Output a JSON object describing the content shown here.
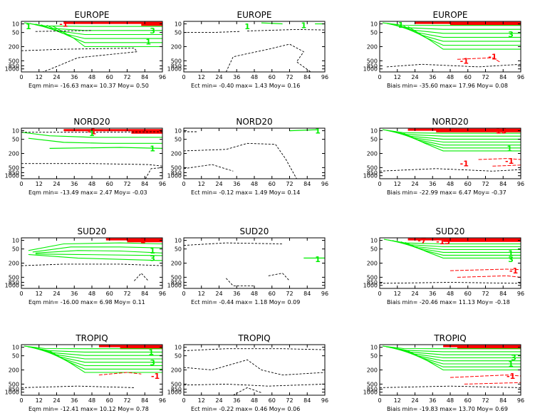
{
  "colors": {
    "green": "#00ee00",
    "red": "#ff0000",
    "black": "#000000"
  },
  "x_ticks": [
    "0",
    "12",
    "24",
    "36",
    "48",
    "60",
    "72",
    "84",
    "96"
  ],
  "y_ticks": [
    "10",
    "50",
    "200",
    "500",
    "850",
    "1000"
  ],
  "y_tick_values": [
    10,
    50,
    200,
    500,
    850,
    1000
  ],
  "chart_data": [
    {
      "type": "contour",
      "title": "EUROPE",
      "stats": "Eqm min= -16.63 max= 10.37 Moy= 0.50",
      "xlim": [
        0,
        96
      ],
      "ylim": [
        1000,
        10
      ],
      "contour_labels": [
        "-1",
        "1",
        "1",
        "3"
      ]
    },
    {
      "type": "contour",
      "title": "EUROPE",
      "stats": "Ect min= -0.40 max= 1.43 Moy= 0.16",
      "xlim": [
        0,
        96
      ],
      "ylim": [
        1000,
        10
      ],
      "contour_labels": [
        "1",
        "1"
      ]
    },
    {
      "type": "contour",
      "title": "EUROPE",
      "stats": "Biais min= -35.60 max= 17.96 Moy= 0.08",
      "xlim": [
        0,
        96
      ],
      "ylim": [
        1000,
        10
      ],
      "contour_labels": [
        "1",
        "3",
        "-1",
        "-1"
      ]
    },
    {
      "type": "contour",
      "title": "NORD20",
      "stats": "Eqm min= -13.49 max= 2.47 Moy= -0.03",
      "xlim": [
        0,
        96
      ],
      "ylim": [
        1000,
        10
      ],
      "contour_labels": [
        "-1",
        "1",
        "1"
      ]
    },
    {
      "type": "contour",
      "title": "NORD20",
      "stats": "Ect min= -0.12 max= 1.49 Moy= 0.14",
      "xlim": [
        0,
        96
      ],
      "ylim": [
        1000,
        10
      ],
      "contour_labels": [
        "1"
      ]
    },
    {
      "type": "contour",
      "title": "NORD20",
      "stats": "Biais min= -22.99 max= 6.47 Moy= -0.37",
      "xlim": [
        0,
        96
      ],
      "ylim": [
        1000,
        10
      ],
      "contour_labels": [
        "-15",
        "-1",
        "1",
        "-1"
      ]
    },
    {
      "type": "contour",
      "title": "SUD20",
      "stats": "Eqm min= -16.00 max= 6.98 Moy= 0.11",
      "xlim": [
        0,
        96
      ],
      "ylim": [
        1000,
        10
      ],
      "contour_labels": [
        "-1",
        "1",
        "3"
      ]
    },
    {
      "type": "contour",
      "title": "SUD20",
      "stats": "Ect min= -0.44 max= 1.18 Moy= 0.09",
      "xlim": [
        0,
        96
      ],
      "ylim": [
        1000,
        10
      ],
      "contour_labels": [
        "1"
      ]
    },
    {
      "type": "contour",
      "title": "SUD20",
      "stats": "Biais min= -20.46 max= 11.13 Moy= -0.18",
      "xlim": [
        0,
        96
      ],
      "ylim": [
        1000,
        10
      ],
      "contour_labels": [
        "-7",
        "-13",
        "1",
        "3",
        "-1"
      ]
    },
    {
      "type": "contour",
      "title": "TROPIQ",
      "stats": "Eqm min= -12.41 max= 10.12 Moy= 0.78",
      "xlim": [
        0,
        96
      ],
      "ylim": [
        1000,
        10
      ],
      "contour_labels": [
        "1",
        "3",
        "-1"
      ]
    },
    {
      "type": "contour",
      "title": "TROPIQ",
      "stats": "Ect min= -0.22 max= 0.46 Moy= 0.06",
      "xlim": [
        0,
        96
      ],
      "ylim": [
        1000,
        10
      ],
      "contour_labels": []
    },
    {
      "type": "contour",
      "title": "TROPIQ",
      "stats": "Biais min= -19.83 max= 13.70 Moy= 0.69",
      "xlim": [
        0,
        96
      ],
      "ylim": [
        1000,
        10
      ],
      "contour_labels": [
        "3",
        "1",
        "-1"
      ]
    }
  ]
}
